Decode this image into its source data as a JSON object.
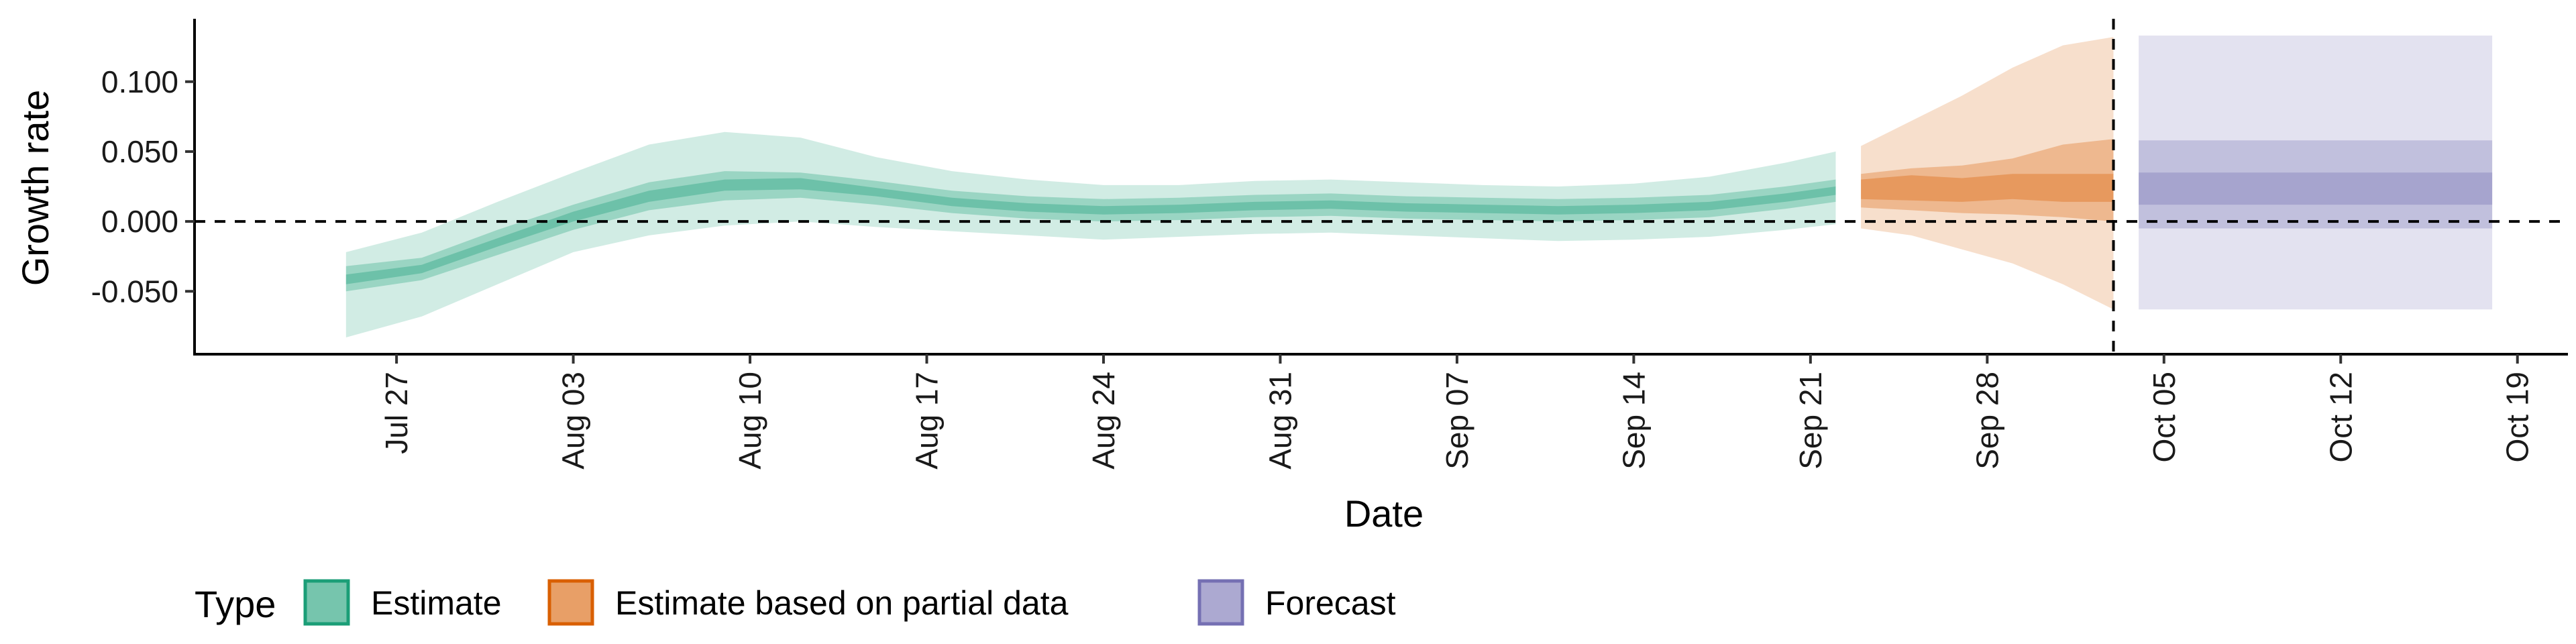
{
  "chart_data": {
    "type": "area",
    "title": "",
    "xlabel": "Date",
    "ylabel": "Growth rate",
    "x_ticks": [
      "2020-07-27",
      "2020-08-03",
      "2020-08-10",
      "2020-08-17",
      "2020-08-24",
      "2020-08-31",
      "2020-09-07",
      "2020-09-14",
      "2020-09-21",
      "2020-09-28",
      "2020-10-05",
      "2020-10-12",
      "2020-10-19"
    ],
    "x_tick_labels": [
      "Jul 27",
      "Aug 03",
      "Aug 10",
      "Aug 17",
      "Aug 24",
      "Aug 31",
      "Sep 07",
      "Sep 14",
      "Sep 21",
      "Sep 28",
      "Oct 05",
      "Oct 12",
      "Oct 19"
    ],
    "y_ticks": [
      -0.05,
      0.0,
      0.05,
      0.1
    ],
    "y_tick_labels": [
      "-0.050",
      "0.000",
      "0.050",
      "0.100"
    ],
    "xlim": [
      "2020-07-19",
      "2020-10-21"
    ],
    "ylim": [
      -0.095,
      0.145
    ],
    "hline": 0.0,
    "vline": "2020-10-03",
    "legend": {
      "title": "Type",
      "position": "bottom",
      "entries": [
        {
          "label": "Estimate",
          "color": "#1b9e77"
        },
        {
          "label": "Estimate based on partial data",
          "color": "#d95f02"
        },
        {
          "label": "Forecast",
          "color": "#7570b3"
        }
      ]
    },
    "series": [
      {
        "name": "Estimate",
        "color": "#1b9e77",
        "points": [
          {
            "date": "2020-07-25",
            "median": -0.042,
            "lo20": -0.045,
            "hi20": -0.038,
            "lo50": -0.05,
            "hi50": -0.032,
            "lo90": -0.083,
            "hi90": -0.022
          },
          {
            "date": "2020-07-28",
            "median": -0.034,
            "lo20": -0.037,
            "hi20": -0.031,
            "lo50": -0.042,
            "hi50": -0.026,
            "lo90": -0.068,
            "hi90": -0.008
          },
          {
            "date": "2020-07-31",
            "median": -0.015,
            "lo20": -0.018,
            "hi20": -0.012,
            "lo50": -0.024,
            "hi50": -0.006,
            "lo90": -0.045,
            "hi90": 0.014
          },
          {
            "date": "2020-08-03",
            "median": 0.003,
            "lo20": 0.0,
            "hi20": 0.007,
            "lo50": -0.006,
            "hi50": 0.012,
            "lo90": -0.022,
            "hi90": 0.035
          },
          {
            "date": "2020-08-06",
            "median": 0.018,
            "lo20": 0.014,
            "hi20": 0.022,
            "lo50": 0.008,
            "hi50": 0.028,
            "lo90": -0.01,
            "hi90": 0.055
          },
          {
            "date": "2020-08-09",
            "median": 0.026,
            "lo20": 0.022,
            "hi20": 0.03,
            "lo50": 0.015,
            "hi50": 0.036,
            "lo90": -0.003,
            "hi90": 0.064
          },
          {
            "date": "2020-08-12",
            "median": 0.027,
            "lo20": 0.023,
            "hi20": 0.031,
            "lo50": 0.017,
            "hi50": 0.035,
            "lo90": 0.0,
            "hi90": 0.06
          },
          {
            "date": "2020-08-15",
            "median": 0.021,
            "lo20": 0.018,
            "hi20": 0.024,
            "lo50": 0.012,
            "hi50": 0.029,
            "lo90": -0.004,
            "hi90": 0.046
          },
          {
            "date": "2020-08-18",
            "median": 0.014,
            "lo20": 0.011,
            "hi20": 0.017,
            "lo50": 0.006,
            "hi50": 0.022,
            "lo90": -0.007,
            "hi90": 0.036
          },
          {
            "date": "2020-08-21",
            "median": 0.01,
            "lo20": 0.007,
            "hi20": 0.013,
            "lo50": 0.002,
            "hi50": 0.018,
            "lo90": -0.01,
            "hi90": 0.03
          },
          {
            "date": "2020-08-24",
            "median": 0.008,
            "lo20": 0.005,
            "hi20": 0.011,
            "lo50": 0.0,
            "hi50": 0.016,
            "lo90": -0.013,
            "hi90": 0.026
          },
          {
            "date": "2020-08-27",
            "median": 0.009,
            "lo20": 0.006,
            "hi20": 0.012,
            "lo50": 0.001,
            "hi50": 0.017,
            "lo90": -0.011,
            "hi90": 0.026
          },
          {
            "date": "2020-08-30",
            "median": 0.011,
            "lo20": 0.008,
            "hi20": 0.014,
            "lo50": 0.003,
            "hi50": 0.019,
            "lo90": -0.009,
            "hi90": 0.029
          },
          {
            "date": "2020-09-02",
            "median": 0.012,
            "lo20": 0.009,
            "hi20": 0.015,
            "lo50": 0.004,
            "hi50": 0.02,
            "lo90": -0.008,
            "hi90": 0.03
          },
          {
            "date": "2020-09-05",
            "median": 0.01,
            "lo20": 0.007,
            "hi20": 0.013,
            "lo50": 0.002,
            "hi50": 0.018,
            "lo90": -0.01,
            "hi90": 0.028
          },
          {
            "date": "2020-09-08",
            "median": 0.009,
            "lo20": 0.006,
            "hi20": 0.012,
            "lo50": 0.001,
            "hi50": 0.017,
            "lo90": -0.012,
            "hi90": 0.026
          },
          {
            "date": "2020-09-11",
            "median": 0.008,
            "lo20": 0.005,
            "hi20": 0.011,
            "lo50": 0.0,
            "hi50": 0.016,
            "lo90": -0.014,
            "hi90": 0.025
          },
          {
            "date": "2020-09-14",
            "median": 0.009,
            "lo20": 0.006,
            "hi20": 0.012,
            "lo50": 0.001,
            "hi50": 0.017,
            "lo90": -0.013,
            "hi90": 0.027
          },
          {
            "date": "2020-09-17",
            "median": 0.011,
            "lo20": 0.008,
            "hi20": 0.014,
            "lo50": 0.003,
            "hi50": 0.019,
            "lo90": -0.011,
            "hi90": 0.032
          },
          {
            "date": "2020-09-20",
            "median": 0.017,
            "lo20": 0.014,
            "hi20": 0.02,
            "lo50": 0.009,
            "hi50": 0.025,
            "lo90": -0.006,
            "hi90": 0.042
          },
          {
            "date": "2020-09-22",
            "median": 0.022,
            "lo20": 0.019,
            "hi20": 0.025,
            "lo50": 0.014,
            "hi50": 0.03,
            "lo90": -0.002,
            "hi90": 0.05
          }
        ]
      },
      {
        "name": "Estimate based on partial data",
        "color": "#d95f02",
        "points": [
          {
            "date": "2020-09-23",
            "median": 0.022,
            "lo20": 0.016,
            "hi20": 0.03,
            "lo50": 0.01,
            "hi50": 0.034,
            "lo90": -0.005,
            "hi90": 0.054
          },
          {
            "date": "2020-09-25",
            "median": 0.025,
            "lo20": 0.015,
            "hi20": 0.033,
            "lo50": 0.008,
            "hi50": 0.038,
            "lo90": -0.01,
            "hi90": 0.072
          },
          {
            "date": "2020-09-27",
            "median": 0.023,
            "lo20": 0.014,
            "hi20": 0.031,
            "lo50": 0.006,
            "hi50": 0.04,
            "lo90": -0.02,
            "hi90": 0.09
          },
          {
            "date": "2020-09-29",
            "median": 0.026,
            "lo20": 0.016,
            "hi20": 0.034,
            "lo50": 0.005,
            "hi50": 0.045,
            "lo90": -0.03,
            "hi90": 0.11
          },
          {
            "date": "2020-10-01",
            "median": 0.024,
            "lo20": 0.014,
            "hi20": 0.034,
            "lo50": 0.003,
            "hi50": 0.055,
            "lo90": -0.045,
            "hi90": 0.126
          },
          {
            "date": "2020-10-03",
            "median": 0.025,
            "lo20": 0.014,
            "hi20": 0.034,
            "lo50": 0.0,
            "hi50": 0.059,
            "lo90": -0.063,
            "hi90": 0.132
          }
        ]
      },
      {
        "name": "Forecast",
        "color": "#7570b3",
        "points": [
          {
            "date": "2020-10-04",
            "median": 0.023,
            "lo20": 0.012,
            "hi20": 0.035,
            "lo50": -0.005,
            "hi50": 0.058,
            "lo90": -0.063,
            "hi90": 0.133
          },
          {
            "date": "2020-10-18",
            "median": 0.023,
            "lo20": 0.012,
            "hi20": 0.035,
            "lo50": -0.005,
            "hi50": 0.058,
            "lo90": -0.063,
            "hi90": 0.133
          }
        ]
      }
    ]
  }
}
